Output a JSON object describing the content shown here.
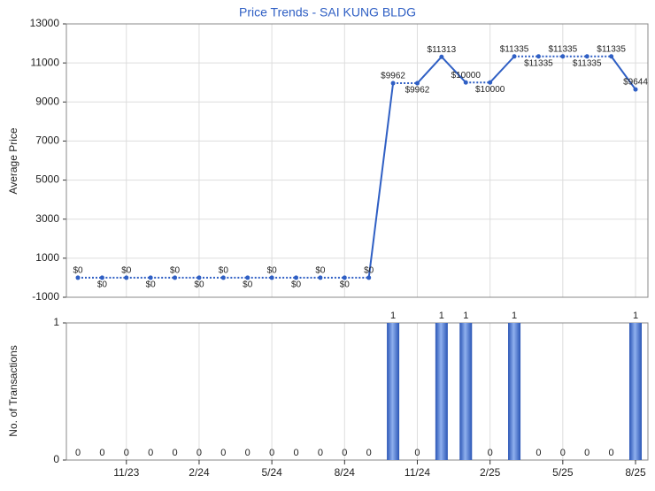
{
  "chart_data": [
    {
      "type": "line",
      "title": "Price Trends - SAI KUNG BLDG",
      "y_label": "Average Price",
      "values": [
        0,
        0,
        0,
        0,
        0,
        0,
        0,
        0,
        0,
        0,
        0,
        0,
        0,
        9962,
        9962,
        11313,
        10000,
        10000,
        11335,
        11335,
        11335,
        11335,
        11335,
        9644
      ],
      "value_labels": [
        "$0",
        "$0",
        "$0",
        "$0",
        "$0",
        "$0",
        "$0",
        "$0",
        "$0",
        "$0",
        "$0",
        "$0",
        "$0",
        "$9962",
        "$9962",
        "$11313",
        "$10000",
        "$10000",
        "$11335",
        "$11335",
        "$11335",
        "$11335",
        "$11335",
        "$9644"
      ],
      "color": "#2f5fc4",
      "ylim": [
        -1000,
        13000
      ],
      "yticks": [
        -1000,
        1000,
        3000,
        5000,
        7000,
        9000,
        11000,
        13000
      ],
      "grid": true
    },
    {
      "type": "bar",
      "y_label": "No. of Transactions",
      "categories": [
        null,
        null,
        "11/23",
        null,
        null,
        "2/24",
        null,
        null,
        "5/24",
        null,
        null,
        "8/24",
        null,
        null,
        "11/24",
        null,
        null,
        "2/25",
        null,
        null,
        "5/25",
        null,
        null,
        "8/25"
      ],
      "values": [
        0,
        0,
        0,
        0,
        0,
        0,
        0,
        0,
        0,
        0,
        0,
        0,
        0,
        1,
        0,
        1,
        1,
        0,
        1,
        0,
        0,
        0,
        0,
        1
      ],
      "color": "#3a66c8",
      "ylim": [
        0,
        1
      ],
      "yticks": [
        0,
        1
      ],
      "grid": true
    }
  ]
}
